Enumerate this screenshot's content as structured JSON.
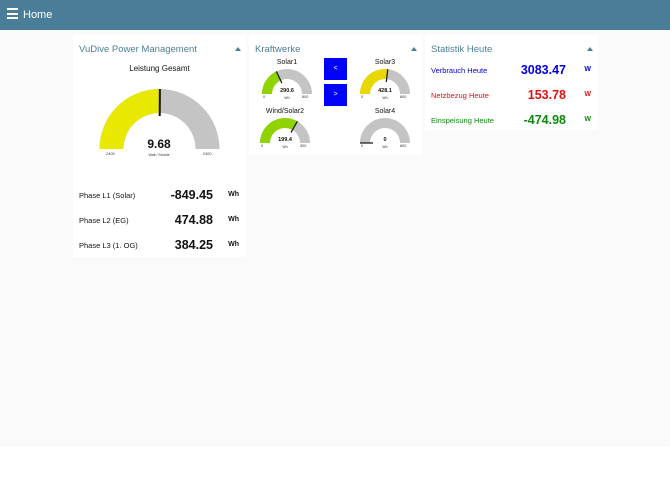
{
  "toolbar": {
    "title": "Home"
  },
  "power": {
    "title": "VuDive Power Management",
    "gauge": {
      "title": "Leistung Gesamt",
      "value": "9.68",
      "unit": "Watt / Stunde",
      "min": "-2400",
      "max": "2400",
      "fraction": 0.502
    },
    "rows": [
      {
        "label": "Phase L1 (Solar)",
        "value": "-849.45",
        "unit": "Wh"
      },
      {
        "label": "Phase L2 (EG)",
        "value": "474.88",
        "unit": "Wh"
      },
      {
        "label": "Phase L3 (1. OG)",
        "value": "384.25",
        "unit": "Wh"
      }
    ],
    "colors": {
      "fill": "#e8e800",
      "track": "#c4c4c4"
    }
  },
  "kraftwerke": {
    "title": "Kraftwerke",
    "nav": {
      "prev": "<",
      "next": ">"
    },
    "gauges": [
      {
        "title": "Solar1",
        "value": "290.6",
        "unit": "Wh",
        "min": "0",
        "max": "800",
        "fraction": 0.36,
        "color": "#8fd400"
      },
      {
        "title": "Solar3",
        "value": "428.1",
        "unit": "Wh",
        "min": "0",
        "max": "800",
        "fraction": 0.535,
        "color": "#e8d800"
      },
      {
        "title": "Wind/Solar2",
        "value": "199.4",
        "unit": "Wh",
        "min": "0",
        "max": "300",
        "fraction": 0.665,
        "color": "#8fd400"
      },
      {
        "title": "Solar4",
        "value": "0",
        "unit": "Wh",
        "min": "0",
        "max": "800",
        "fraction": 0.0,
        "color": "#8fd400"
      }
    ]
  },
  "statistik": {
    "title": "Statistik Heute",
    "rows": [
      {
        "label": "Verbrauch Heute",
        "value": "3083.47",
        "unit": "W",
        "color": "#0000e0"
      },
      {
        "label": "Netzbezug Heute",
        "value": "153.78",
        "unit": "W",
        "color": "#e01010"
      },
      {
        "label": "Einspeisung Heute",
        "value": "-474.98",
        "unit": "W",
        "color": "#0a8a0a"
      }
    ]
  }
}
